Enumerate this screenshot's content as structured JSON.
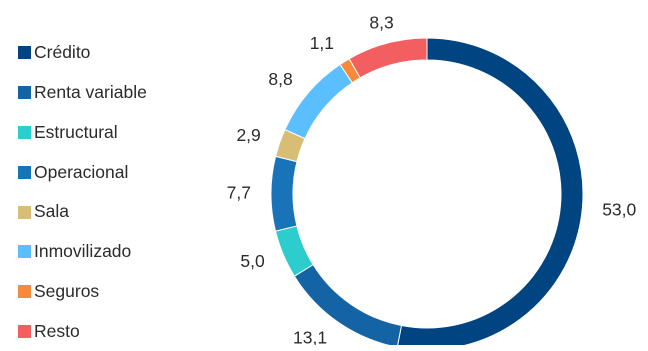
{
  "chart_data": {
    "type": "pie",
    "variant": "donut",
    "title": "",
    "legend_position": "left",
    "series": [
      {
        "name": "Crédito",
        "value": 53.0,
        "label": "53,0",
        "color": "#004481"
      },
      {
        "name": "Renta variable",
        "value": 13.1,
        "label": "13,1",
        "color": "#1464a5"
      },
      {
        "name": "Estructural",
        "value": 5.0,
        "label": "5,0",
        "color": "#2dcccd"
      },
      {
        "name": "Operacional",
        "value": 7.7,
        "label": "7,7",
        "color": "#1973b8"
      },
      {
        "name": "Sala",
        "value": 2.9,
        "label": "2,9",
        "color": "#d8be75"
      },
      {
        "name": "Inmovilizado",
        "value": 8.8,
        "label": "8,8",
        "color": "#5bbeff"
      },
      {
        "name": "Seguros",
        "value": 1.1,
        "label": "1,1",
        "color": "#f7893b"
      },
      {
        "name": "Resto",
        "value": 8.3,
        "label": "8,3",
        "color": "#f35e61"
      }
    ]
  }
}
